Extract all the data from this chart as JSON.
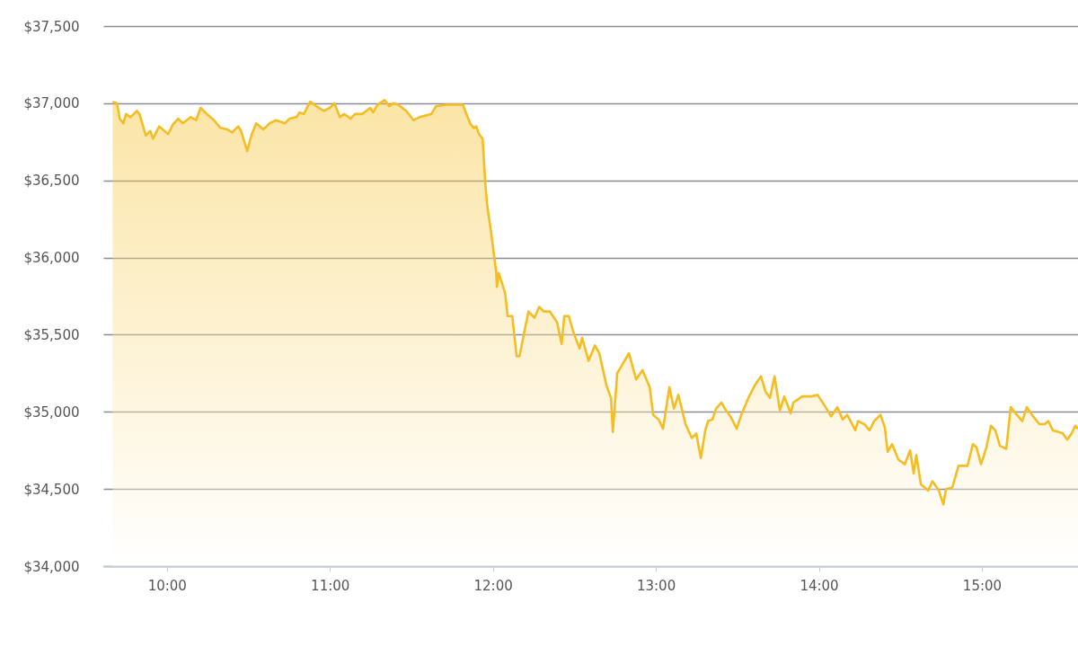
{
  "chart_data": {
    "type": "area",
    "x": [
      9.667,
      9.694,
      9.711,
      9.733,
      9.749,
      9.777,
      9.816,
      9.832,
      9.871,
      9.898,
      9.915,
      9.953,
      10.008,
      10.036,
      10.069,
      10.097,
      10.146,
      10.179,
      10.207,
      10.245,
      10.289,
      10.328,
      10.372,
      10.4,
      10.438,
      10.455,
      10.493,
      10.521,
      10.548,
      10.592,
      10.631,
      10.67,
      10.725,
      10.752,
      10.796,
      10.813,
      10.84,
      10.879,
      10.918,
      10.962,
      11.0,
      11.028,
      11.061,
      11.088,
      11.127,
      11.154,
      11.198,
      11.248,
      11.265,
      11.292,
      11.336,
      11.364,
      11.391,
      11.419,
      11.469,
      11.513,
      11.551,
      11.623,
      11.65,
      11.716,
      11.771,
      11.816,
      11.86,
      11.882,
      11.898,
      11.915,
      11.937,
      11.953,
      11.964,
      11.992,
      12.02,
      12.025,
      12.036,
      12.075,
      12.091,
      12.119,
      12.146,
      12.163,
      12.218,
      12.256,
      12.284,
      12.312,
      12.35,
      12.394,
      12.422,
      12.438,
      12.466,
      12.493,
      12.532,
      12.548,
      12.587,
      12.626,
      12.653,
      12.697,
      12.725,
      12.736,
      12.763,
      12.796,
      12.835,
      12.879,
      12.918,
      12.962,
      12.984,
      13.017,
      13.044,
      13.083,
      13.111,
      13.138,
      13.182,
      13.221,
      13.248,
      13.265,
      13.276,
      13.303,
      13.32,
      13.347,
      13.369,
      13.402,
      13.43,
      13.458,
      13.496,
      13.524,
      13.568,
      13.606,
      13.645,
      13.673,
      13.7,
      13.728,
      13.761,
      13.788,
      13.827,
      13.843,
      13.898,
      13.954,
      13.992,
      14.036,
      14.075,
      14.113,
      14.146,
      14.174,
      14.224,
      14.24,
      14.279,
      14.311,
      14.339,
      14.378,
      14.405,
      14.422,
      14.449,
      14.488,
      14.527,
      14.56,
      14.582,
      14.598,
      14.626,
      14.67,
      14.697,
      14.736,
      14.764,
      14.78,
      14.819,
      14.857,
      14.89,
      14.912,
      14.945,
      14.967,
      14.995,
      15.028,
      15.056,
      15.083,
      15.111,
      15.15,
      15.177,
      15.215,
      15.248,
      15.276,
      15.315,
      15.353,
      15.386,
      15.408,
      15.436,
      15.469,
      15.496,
      15.524,
      15.551,
      15.573,
      15.59
    ],
    "series": [
      {
        "color": "#f5bd22",
        "values": [
          37010,
          37000,
          36900,
          36870,
          36930,
          36910,
          36950,
          36930,
          36790,
          36820,
          36770,
          36850,
          36800,
          36860,
          36900,
          36870,
          36910,
          36890,
          36970,
          36930,
          36890,
          36840,
          36830,
          36810,
          36850,
          36820,
          36690,
          36800,
          36870,
          36830,
          36870,
          36890,
          36870,
          36900,
          36910,
          36940,
          36930,
          37010,
          36980,
          36950,
          36970,
          37000,
          36910,
          36930,
          36900,
          36930,
          36930,
          36970,
          36940,
          36990,
          37020,
          36980,
          37000,
          36990,
          36950,
          36890,
          36910,
          36930,
          36980,
          36990,
          36990,
          36990,
          36870,
          36840,
          36850,
          36800,
          36770,
          36490,
          36350,
          36140,
          35910,
          35810,
          35900,
          35770,
          35620,
          35620,
          35360,
          35360,
          35650,
          35610,
          35680,
          35650,
          35650,
          35580,
          35440,
          35620,
          35620,
          35520,
          35410,
          35480,
          35330,
          35430,
          35380,
          35170,
          35090,
          34870,
          35250,
          35310,
          35380,
          35210,
          35270,
          35160,
          34980,
          34950,
          34890,
          35160,
          35020,
          35110,
          34920,
          34830,
          34860,
          34760,
          34700,
          34880,
          34940,
          34950,
          35020,
          35060,
          35010,
          34970,
          34890,
          34980,
          35090,
          35170,
          35230,
          35130,
          35090,
          35230,
          35010,
          35100,
          34990,
          35060,
          35100,
          35100,
          35110,
          35040,
          34970,
          35030,
          34950,
          34980,
          34880,
          34940,
          34920,
          34880,
          34940,
          34980,
          34900,
          34740,
          34790,
          34690,
          34660,
          34750,
          34600,
          34720,
          34530,
          34490,
          34550,
          34490,
          34400,
          34500,
          34510,
          34650,
          34650,
          34650,
          34790,
          34770,
          34660,
          34770,
          34910,
          34880,
          34780,
          34760,
          35030,
          34980,
          34940,
          35030,
          34970,
          34920,
          34920,
          34940,
          34880,
          34870,
          34860,
          34820,
          34860,
          34910,
          34890
        ]
      }
    ],
    "xlim": [
      9.61,
      15.59
    ],
    "xticks": [
      {
        "value": 10,
        "label": "10:00"
      },
      {
        "value": 11,
        "label": "11:00"
      },
      {
        "value": 12,
        "label": "12:00"
      },
      {
        "value": 13,
        "label": "13:00"
      },
      {
        "value": 14,
        "label": "14:00"
      },
      {
        "value": 15,
        "label": "15:00"
      }
    ],
    "ylim": [
      34000,
      37500
    ],
    "yticks": [
      {
        "value": 34000,
        "label": "$34,000"
      },
      {
        "value": 34500,
        "label": "$34,500"
      },
      {
        "value": 35000,
        "label": "$35,000"
      },
      {
        "value": 35500,
        "label": "$35,500"
      },
      {
        "value": 36000,
        "label": "$36,000"
      },
      {
        "value": 36500,
        "label": "$36,500"
      },
      {
        "value": 37000,
        "label": "$37,000"
      },
      {
        "value": 37500,
        "label": "$37,500"
      }
    ],
    "grid": "y"
  }
}
